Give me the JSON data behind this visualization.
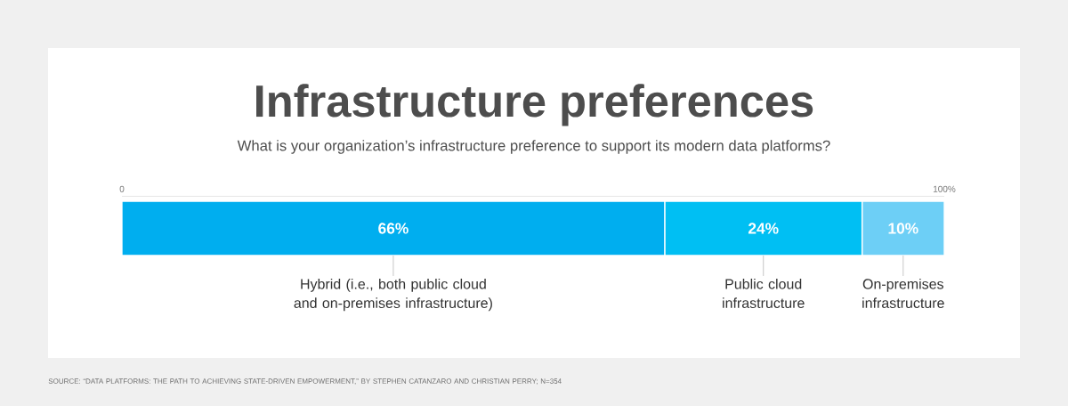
{
  "chart_data": {
    "type": "bar",
    "orientation": "horizontal",
    "stacked": true,
    "title": "Infrastructure preferences",
    "subtitle": "What is your organization’s infrastructure preference to support its modern data platforms?",
    "categories": [
      null
    ],
    "series": [
      {
        "name": "Hybrid (i.e., both public cloud and on-premises infrastructure)",
        "color": "#00aeef",
        "values": [
          66
        ],
        "value_labels": [
          "66%"
        ]
      },
      {
        "name": "Public cloud infrastructure",
        "color": "#00bff3",
        "values": [
          24
        ],
        "value_labels": [
          "24%"
        ]
      },
      {
        "name": "On-premises infrastructure",
        "color": "#6dcff6",
        "values": [
          10
        ],
        "value_labels": [
          "10%"
        ]
      }
    ],
    "xlim": [
      0,
      100
    ],
    "xticks": [
      {
        "value": 0,
        "label": "0"
      },
      {
        "value": 100,
        "label": "100%"
      }
    ],
    "tick_labels": "x",
    "legend": false,
    "grid": false,
    "annotations": [
      "SOURCE: “DATA PLATFORMS: THE PATH TO ACHIEVING STATE-DRIVEN EMPOWERMENT,” BY STEPHEN CATANZARO AND CHRISTIAN PERRY; N=354"
    ]
  }
}
